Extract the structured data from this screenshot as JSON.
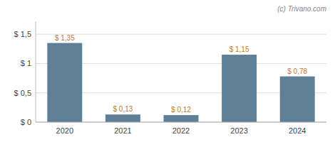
{
  "chart_data": {
    "type": "bar",
    "categories": [
      "2020",
      "2021",
      "2022",
      "2023",
      "2024"
    ],
    "values": [
      1.35,
      0.13,
      0.12,
      1.15,
      0.78
    ],
    "value_labels": [
      "$ 1,35",
      "$ 0,13",
      "$ 0,12",
      "$ 1,15",
      "$ 0,78"
    ],
    "color": "#5f7f96",
    "ylim": [
      0,
      1.72
    ],
    "yticks": [
      {
        "value": 0,
        "label": "$ 0"
      },
      {
        "value": 0.5,
        "label": "$ 0,5"
      },
      {
        "value": 1.0,
        "label": "$ 1"
      },
      {
        "value": 1.5,
        "label": "$ 1,5"
      }
    ],
    "grid": true,
    "data_labels": true,
    "annotations": [
      "(c) Trivano.com"
    ]
  }
}
